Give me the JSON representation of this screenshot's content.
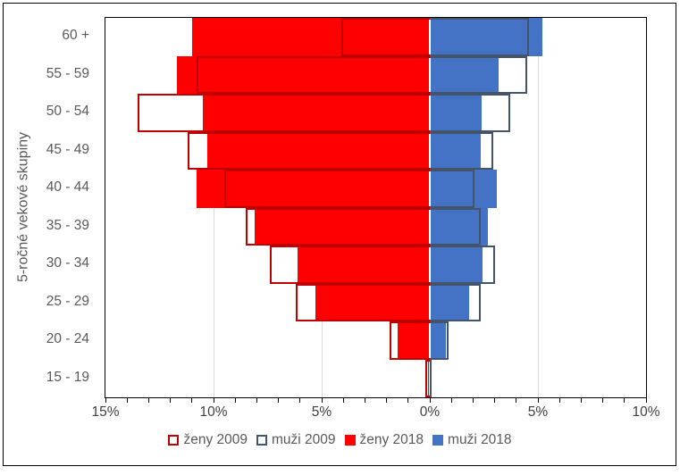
{
  "chart_data": {
    "type": "bar",
    "variant": "population-pyramid",
    "title": "",
    "ylabel": "5-ročné vekové skupiny",
    "categories_top_to_bottom": [
      "60 +",
      "55 - 59",
      "50 - 54",
      "45 - 49",
      "40 - 44",
      "35 - 39",
      "30 - 34",
      "25 - 29",
      "20 - 24",
      "15 - 19"
    ],
    "x_axis": {
      "unit": "%",
      "left_side_max": 15,
      "right_side_max": 10,
      "major_tick_step": 5,
      "minor_tick_step": 1,
      "tick_labels": [
        "15%",
        "10%",
        "5%",
        "0%",
        "5%",
        "10%"
      ],
      "tick_label_positions_pct": [
        -15,
        -10,
        -5,
        0,
        5,
        10
      ],
      "gridlines_pct": [
        -10,
        -5,
        5
      ],
      "grid": "major vertical only"
    },
    "series": [
      {
        "name": "ženy 2009",
        "side": "left",
        "style": "outline",
        "color": "#C00000",
        "values": [
          4.1,
          10.8,
          13.5,
          11.2,
          9.5,
          8.5,
          7.4,
          6.2,
          1.85,
          0.2
        ]
      },
      {
        "name": "muži 2009",
        "side": "right",
        "style": "outline",
        "color": "#44546A",
        "values": [
          4.6,
          4.5,
          3.7,
          2.95,
          2.05,
          2.35,
          3.0,
          2.35,
          0.85,
          0.1
        ]
      },
      {
        "name": "ženy 2018",
        "side": "left",
        "style": "fill",
        "color": "#FF0000",
        "values": [
          11.0,
          11.7,
          10.5,
          10.3,
          10.8,
          8.1,
          6.1,
          5.3,
          1.5,
          0.1
        ]
      },
      {
        "name": "muži 2018",
        "side": "right",
        "style": "fill",
        "color": "#4472C4",
        "values": [
          5.2,
          3.2,
          2.4,
          2.35,
          3.1,
          2.7,
          2.45,
          1.8,
          0.75,
          0.1
        ]
      }
    ],
    "legend": {
      "position": "bottom",
      "entries": [
        {
          "label": "ženy 2009",
          "swatch": "outline",
          "color": "#C00000"
        },
        {
          "label": "muži 2009",
          "swatch": "outline",
          "color": "#44546A"
        },
        {
          "label": "ženy 2018",
          "swatch": "fill",
          "color": "#FF0000"
        },
        {
          "label": "muži 2018",
          "swatch": "fill",
          "color": "#4472C4"
        }
      ]
    },
    "colors": {
      "gridline": "#D9D9D9",
      "axis_line": "#000000",
      "x_tick_label": "#404040",
      "category_label": "#595959",
      "plot_border": "#000000"
    }
  }
}
